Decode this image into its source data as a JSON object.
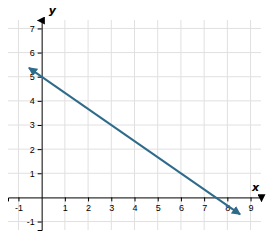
{
  "chart_data": {
    "type": "line",
    "x": [
      -0.55,
      8.55
    ],
    "values": [
      5.366685,
      -0.700285
    ],
    "color": "#2e6b8a",
    "xlabel": "x",
    "ylabel": "y",
    "xlim": [
      -1.45,
      9.45
    ],
    "ylim": [
      -1.35,
      7.35
    ],
    "xticks": [
      -1,
      1,
      2,
      3,
      4,
      5,
      6,
      7,
      8,
      9
    ],
    "yticks": [
      -1,
      1,
      2,
      3,
      4,
      5,
      6,
      7
    ],
    "grid": true
  }
}
